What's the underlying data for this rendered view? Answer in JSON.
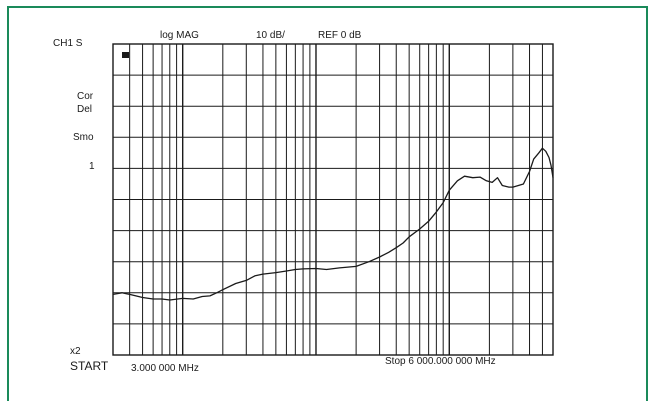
{
  "header": {
    "channel": "CH1 S",
    "format": "log MAG",
    "scale": "10 dB/",
    "reference": "REF 0 dB"
  },
  "side_labels": {
    "cor": "Cor",
    "del": "Del",
    "smo": "Smo",
    "marker": "1",
    "x2": "x2"
  },
  "footer": {
    "start_label": "START",
    "start_value": "3.000 000 MHz",
    "stop": "Stop 6 000.000 000 MHz"
  },
  "colors": {
    "frame": "#1a8a5a",
    "grid": "#1a1a1a",
    "trace": "#1a1a1a"
  },
  "chart_data": {
    "type": "line",
    "x_scale": "log",
    "xlim": [
      3,
      6000
    ],
    "ylim": [
      -100,
      0
    ],
    "y_units": "dB",
    "y_divisions": 10,
    "grid": true,
    "series": [
      {
        "x": [
          3,
          3.5,
          4,
          5,
          6,
          7,
          8,
          10,
          12,
          14,
          16,
          18,
          20,
          25,
          30,
          35,
          40,
          50,
          60,
          70,
          80,
          100,
          120,
          150,
          200,
          250,
          300,
          350,
          400,
          450,
          500,
          600,
          700,
          800,
          900,
          1000,
          1150,
          1300,
          1500,
          1700,
          1900,
          2100,
          2300,
          2500,
          2800,
          3000,
          3300,
          3600,
          4000,
          4300,
          4700,
          5000,
          5300,
          5600,
          5800,
          6000
        ],
        "y": [
          -80.5,
          -80.0,
          -80.5,
          -81.5,
          -82.0,
          -82.0,
          -82.3,
          -81.8,
          -82.0,
          -81.2,
          -81.0,
          -80.0,
          -79.0,
          -77.0,
          -76.0,
          -74.5,
          -74.0,
          -73.5,
          -73.0,
          -72.5,
          -72.3,
          -72.2,
          -72.5,
          -72.0,
          -71.5,
          -70.0,
          -68.5,
          -67.0,
          -65.5,
          -64.0,
          -62.0,
          -59.5,
          -57.0,
          -54.0,
          -51.0,
          -47.0,
          -44.0,
          -42.5,
          -43.0,
          -42.8,
          -44.0,
          -44.5,
          -43.0,
          -45.5,
          -46.0,
          -46.0,
          -45.5,
          -45.0,
          -41.0,
          -37.0,
          -35.0,
          -33.5,
          -34.5,
          -36.5,
          -39.0,
          -43.0
        ]
      }
    ]
  }
}
